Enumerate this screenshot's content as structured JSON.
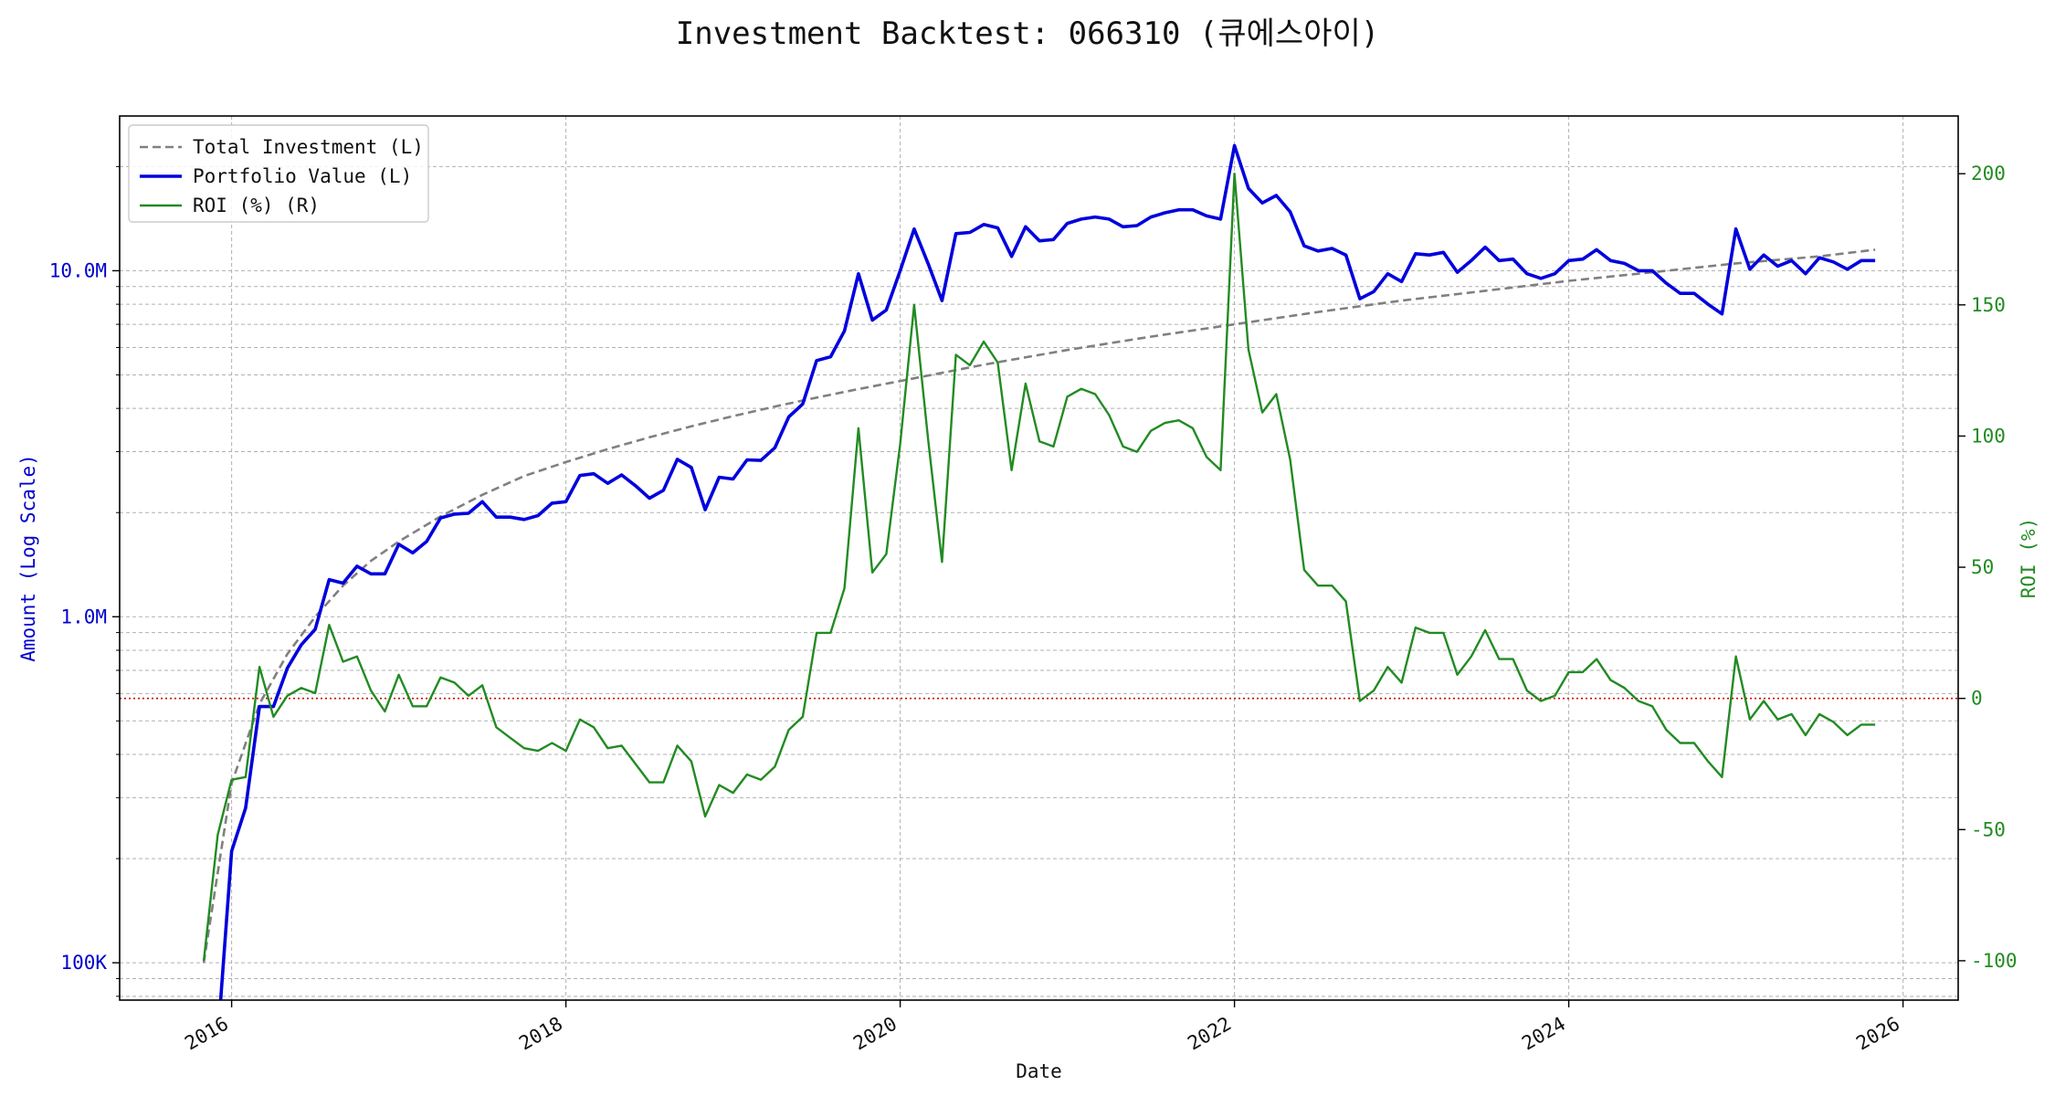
{
  "chart_data": {
    "type": "line",
    "title": "Investment Backtest: 066310 (큐에스아이)",
    "xlabel": "Date",
    "ylabel_left": "Amount (Log Scale)",
    "ylabel_right": "ROI (%)",
    "left_axis_scale": "log",
    "x_ticks": [
      "2016",
      "2018",
      "2020",
      "2022",
      "2024",
      "2026"
    ],
    "y_left_ticks": [
      "100K",
      "1.0M",
      "10.0M"
    ],
    "y_left_tick_values": [
      100000,
      1000000,
      10000000
    ],
    "y_right_ticks": [
      "-100",
      "-50",
      "0",
      "50",
      "100",
      "150",
      "200"
    ],
    "y_right_tick_values": [
      -100,
      -50,
      0,
      50,
      100,
      150,
      200
    ],
    "ylim_left": [
      78000,
      28000000
    ],
    "ylim_right": [
      -115,
      222
    ],
    "xlim": [
      2015.33,
      2026.33
    ],
    "grid": true,
    "legend_position": "top-left",
    "zero_line": 0,
    "colors": {
      "total_investment": "#808080",
      "portfolio_value": "#0000dd",
      "roi": "#228b22",
      "zero_line": "#cc0000",
      "left_axis": "#0000cc",
      "right_axis": "#228b22"
    },
    "series": [
      {
        "name": "Total Investment (L)",
        "axis": "left",
        "style": "dashed",
        "x": [
          "2015-11-01",
          "2016-01-01",
          "2016-03-01",
          "2016-05-01",
          "2016-07-01",
          "2016-09-01",
          "2016-11-01",
          "2017-01-01",
          "2017-04-01",
          "2017-07-01",
          "2017-10-01",
          "2018-01-01",
          "2018-04-01",
          "2018-07-01",
          "2018-10-01",
          "2019-01-01",
          "2019-04-01",
          "2019-07-01",
          "2019-10-01",
          "2020-01-01",
          "2020-07-01",
          "2021-01-01",
          "2021-07-01",
          "2022-01-01",
          "2022-07-01",
          "2023-01-01",
          "2023-07-01",
          "2024-01-01",
          "2024-07-01",
          "2025-01-01",
          "2025-07-01",
          "2025-11-01"
        ],
        "values": [
          100000,
          330000,
          560000,
          780000,
          1000000,
          1230000,
          1450000,
          1650000,
          1950000,
          2250000,
          2550000,
          2800000,
          3050000,
          3300000,
          3550000,
          3800000,
          4050000,
          4300000,
          4550000,
          4800000,
          5350000,
          5900000,
          6450000,
          7000000,
          7600000,
          8200000,
          8750000,
          9350000,
          9900000,
          10500000,
          11000000,
          11500000
        ]
      },
      {
        "name": "Portfolio Value (L)",
        "axis": "left",
        "style": "solid",
        "x": [
          "2015-12-01",
          "2016-01-01",
          "2016-02-01",
          "2016-03-01",
          "2016-04-01",
          "2016-05-01",
          "2016-06-01",
          "2016-07-01",
          "2016-08-01",
          "2016-09-01",
          "2016-10-01",
          "2016-11-01",
          "2016-12-01",
          "2017-01-01",
          "2017-02-01",
          "2017-03-01",
          "2017-04-01",
          "2017-05-01",
          "2017-06-01",
          "2017-07-01",
          "2017-08-01",
          "2017-09-01",
          "2017-10-01",
          "2017-11-01",
          "2017-12-01",
          "2018-01-01",
          "2018-02-01",
          "2018-03-01",
          "2018-04-01",
          "2018-05-01",
          "2018-06-01",
          "2018-07-01",
          "2018-08-01",
          "2018-09-01",
          "2018-10-01",
          "2018-11-01",
          "2018-12-01",
          "2019-01-01",
          "2019-02-01",
          "2019-03-01",
          "2019-04-01",
          "2019-05-01",
          "2019-06-01",
          "2019-07-01",
          "2019-08-01",
          "2019-09-01",
          "2019-10-01",
          "2019-11-01",
          "2019-12-01",
          "2020-01-01",
          "2020-02-01",
          "2020-03-01",
          "2020-04-01",
          "2020-05-01",
          "2020-06-01",
          "2020-07-01",
          "2020-08-01",
          "2020-09-01",
          "2020-10-01",
          "2020-11-01",
          "2020-12-01",
          "2021-01-01",
          "2021-02-01",
          "2021-03-01",
          "2021-04-01",
          "2021-05-01",
          "2021-06-01",
          "2021-07-01",
          "2021-08-01",
          "2021-09-01",
          "2021-10-01",
          "2021-11-01",
          "2021-12-01",
          "2022-01-01",
          "2022-02-01",
          "2022-03-01",
          "2022-04-01",
          "2022-05-01",
          "2022-06-01",
          "2022-07-01",
          "2022-08-01",
          "2022-09-01",
          "2022-10-01",
          "2022-11-01",
          "2022-12-01",
          "2023-01-01",
          "2023-02-01",
          "2023-03-01",
          "2023-04-01",
          "2023-05-01",
          "2023-06-01",
          "2023-07-01",
          "2023-08-01",
          "2023-09-01",
          "2023-10-01",
          "2023-11-01",
          "2023-12-01",
          "2024-01-01",
          "2024-02-01",
          "2024-03-01",
          "2024-04-01",
          "2024-05-01",
          "2024-06-01",
          "2024-07-01",
          "2024-08-01",
          "2024-09-01",
          "2024-10-01",
          "2024-11-01",
          "2024-12-01",
          "2025-01-01",
          "2025-02-01",
          "2025-03-01",
          "2025-04-01",
          "2025-05-01",
          "2025-06-01",
          "2025-07-01",
          "2025-08-01",
          "2025-09-01",
          "2025-10-01",
          "2025-11-01"
        ],
        "values": [
          60000,
          210000,
          280000,
          550000,
          550000,
          710000,
          830000,
          920000,
          1280000,
          1250000,
          1400000,
          1330000,
          1330000,
          1620000,
          1530000,
          1650000,
          1930000,
          1980000,
          1990000,
          2150000,
          1940000,
          1940000,
          1910000,
          1960000,
          2130000,
          2150000,
          2560000,
          2590000,
          2430000,
          2570000,
          2390000,
          2200000,
          2320000,
          2850000,
          2700000,
          2040000,
          2530000,
          2500000,
          2840000,
          2830000,
          3080000,
          3780000,
          4120000,
          5500000,
          5640000,
          6700000,
          9800000,
          7200000,
          7700000,
          10000000,
          13200000,
          10500000,
          8200000,
          12800000,
          12900000,
          13600000,
          13300000,
          11000000,
          13400000,
          12200000,
          12300000,
          13700000,
          14100000,
          14300000,
          14100000,
          13400000,
          13500000,
          14300000,
          14700000,
          15000000,
          15000000,
          14400000,
          14100000,
          23000000,
          17300000,
          15700000,
          16500000,
          14800000,
          11800000,
          11400000,
          11600000,
          11100000,
          8300000,
          8700000,
          9800000,
          9300000,
          11200000,
          11100000,
          11300000,
          9900000,
          10700000,
          11700000,
          10700000,
          10800000,
          9800000,
          9500000,
          9800000,
          10700000,
          10800000,
          11500000,
          10700000,
          10500000,
          10000000,
          10000000,
          9200000,
          8600000,
          8600000,
          8000000,
          7500000,
          13200000,
          10100000,
          11100000,
          10300000,
          10700000,
          9800000,
          10900000,
          10600000,
          10100000,
          10700000,
          10700000
        ]
      },
      {
        "name": "ROI (%) (R)",
        "axis": "right",
        "style": "solid",
        "x": [
          "2015-11-01",
          "2015-12-01",
          "2016-01-01",
          "2016-02-01",
          "2016-03-01",
          "2016-04-01",
          "2016-05-01",
          "2016-06-01",
          "2016-07-01",
          "2016-08-01",
          "2016-09-01",
          "2016-10-01",
          "2016-11-01",
          "2016-12-01",
          "2017-01-01",
          "2017-02-01",
          "2017-03-01",
          "2017-04-01",
          "2017-05-01",
          "2017-06-01",
          "2017-07-01",
          "2017-08-01",
          "2017-09-01",
          "2017-10-01",
          "2017-11-01",
          "2017-12-01",
          "2018-01-01",
          "2018-02-01",
          "2018-03-01",
          "2018-04-01",
          "2018-05-01",
          "2018-06-01",
          "2018-07-01",
          "2018-08-01",
          "2018-09-01",
          "2018-10-01",
          "2018-11-01",
          "2018-12-01",
          "2019-01-01",
          "2019-02-01",
          "2019-03-01",
          "2019-04-01",
          "2019-05-01",
          "2019-06-01",
          "2019-07-01",
          "2019-08-01",
          "2019-09-01",
          "2019-10-01",
          "2019-11-01",
          "2019-12-01",
          "2020-01-01",
          "2020-02-01",
          "2020-03-01",
          "2020-04-01",
          "2020-05-01",
          "2020-06-01",
          "2020-07-01",
          "2020-08-01",
          "2020-09-01",
          "2020-10-01",
          "2020-11-01",
          "2020-12-01",
          "2021-01-01",
          "2021-02-01",
          "2021-03-01",
          "2021-04-01",
          "2021-05-01",
          "2021-06-01",
          "2021-07-01",
          "2021-08-01",
          "2021-09-01",
          "2021-10-01",
          "2021-11-01",
          "2021-12-01",
          "2022-01-01",
          "2022-02-01",
          "2022-03-01",
          "2022-04-01",
          "2022-05-01",
          "2022-06-01",
          "2022-07-01",
          "2022-08-01",
          "2022-09-01",
          "2022-10-01",
          "2022-11-01",
          "2022-12-01",
          "2023-01-01",
          "2023-02-01",
          "2023-03-01",
          "2023-04-01",
          "2023-05-01",
          "2023-06-01",
          "2023-07-01",
          "2023-08-01",
          "2023-09-01",
          "2023-10-01",
          "2023-11-01",
          "2023-12-01",
          "2024-01-01",
          "2024-02-01",
          "2024-03-01",
          "2024-04-01",
          "2024-05-01",
          "2024-06-01",
          "2024-07-01",
          "2024-08-01",
          "2024-09-01",
          "2024-10-01",
          "2024-11-01",
          "2024-12-01",
          "2025-01-01",
          "2025-02-01",
          "2025-03-01",
          "2025-04-01",
          "2025-05-01",
          "2025-06-01",
          "2025-07-01",
          "2025-08-01",
          "2025-09-01",
          "2025-10-01",
          "2025-11-01"
        ],
        "values": [
          -100,
          -52,
          -31,
          -30,
          12,
          -7,
          1,
          4,
          2,
          28,
          14,
          16,
          3,
          -5,
          9,
          -3,
          -3,
          8,
          6,
          1,
          5,
          -11,
          -15,
          -19,
          -20,
          -17,
          -20,
          -8,
          -11,
          -19,
          -18,
          -25,
          -32,
          -32,
          -18,
          -24,
          -45,
          -33,
          -36,
          -29,
          -31,
          -26,
          -12,
          -7,
          25,
          25,
          42,
          103,
          48,
          55,
          97,
          150,
          99,
          52,
          131,
          127,
          136,
          128,
          87,
          120,
          98,
          96,
          115,
          118,
          116,
          108,
          96,
          94,
          102,
          105,
          106,
          103,
          92,
          87,
          200,
          133,
          109,
          116,
          91,
          49,
          43,
          43,
          37,
          -1,
          3,
          12,
          6,
          27,
          25,
          25,
          9,
          16,
          26,
          15,
          15,
          3,
          -1,
          1,
          10,
          10,
          15,
          7,
          4,
          -1,
          -3,
          -12,
          -17,
          -17,
          -24,
          -30,
          16,
          -8,
          -1,
          -8,
          -6,
          -14,
          -6,
          -9,
          -14,
          -10,
          -10
        ]
      }
    ]
  }
}
